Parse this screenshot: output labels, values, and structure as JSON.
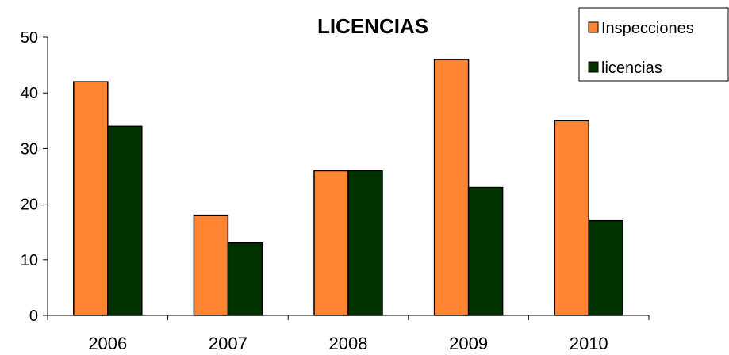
{
  "chart_data": {
    "type": "bar",
    "title": "LICENCIAS",
    "categories": [
      "2006",
      "2007",
      "2008",
      "2009",
      "2010"
    ],
    "series": [
      {
        "name": "Inspecciones",
        "values": [
          42,
          18,
          26,
          46,
          35
        ],
        "color": "#FF8533"
      },
      {
        "name": "licencias",
        "values": [
          34,
          13,
          26,
          23,
          17
        ],
        "color": "#003300"
      }
    ],
    "ylim": [
      0,
      50
    ],
    "yticks": [
      0,
      10,
      20,
      30,
      40,
      50
    ],
    "xlabel": "",
    "ylabel": "",
    "grid": false,
    "legend": "top-right"
  }
}
